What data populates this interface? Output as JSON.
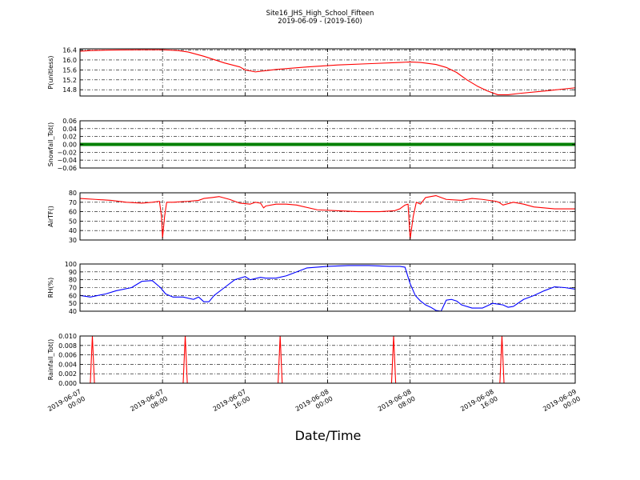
{
  "chart_data": [
    {
      "type": "line",
      "title": "Site16_JHS_High_School_Fifteen",
      "subtitle": "2019-06-09 - (2019-160)",
      "xlabel": "Date/Time",
      "xlim": [
        0,
        48
      ],
      "x_ticks": [
        {
          "value": 0,
          "line1": "2019-06-07",
          "line2": "00:00"
        },
        {
          "value": 8,
          "line1": "2019-06-07",
          "line2": "08:00"
        },
        {
          "value": 16,
          "line1": "2019-06-07",
          "line2": "16:00"
        },
        {
          "value": 24,
          "line1": "2019-06-08",
          "line2": "00:00"
        },
        {
          "value": 32,
          "line1": "2019-06-08",
          "line2": "08:00"
        },
        {
          "value": 40,
          "line1": "2019-06-08",
          "line2": "16:00"
        },
        {
          "value": 48,
          "line1": "2019-06-09",
          "line2": "00:00"
        }
      ],
      "x_unit": "hours since 2019-06-07 00:00",
      "grid": true,
      "panels": [
        {
          "ylabel": "P(unitless)",
          "ylim": [
            14.55,
            16.45
          ],
          "yticks": [
            "14.8",
            "15.2",
            "15.6",
            "16.0",
            "16.4"
          ],
          "ytick_values": [
            14.8,
            15.2,
            15.6,
            16.0,
            16.4
          ],
          "color": "#ff0000",
          "series": [
            {
              "x": [
                0,
                1,
                3,
                6,
                8,
                9.5,
                10.5,
                12,
                14,
                15.5,
                16,
                17,
                19,
                22,
                25,
                28,
                31,
                32,
                33,
                34.5,
                35.5,
                36.5,
                37.5,
                38.5,
                39.5,
                40.5,
                41.5,
                42.5,
                45,
                48
              ],
              "y": [
                16.35,
                16.38,
                16.4,
                16.41,
                16.41,
                16.38,
                16.32,
                16.15,
                15.88,
                15.72,
                15.6,
                15.52,
                15.62,
                15.72,
                15.8,
                15.85,
                15.9,
                15.92,
                15.9,
                15.82,
                15.7,
                15.5,
                15.2,
                14.95,
                14.75,
                14.6,
                14.6,
                14.65,
                14.75,
                14.88
              ]
            }
          ]
        },
        {
          "ylabel": "Snowfall_Tot()",
          "ylim": [
            -0.06,
            0.06
          ],
          "yticks": [
            "−0.06",
            "−0.04",
            "−0.02",
            "0.00",
            "0.02",
            "0.04",
            "0.06"
          ],
          "ytick_values": [
            -0.06,
            -0.04,
            -0.02,
            0,
            0.02,
            0.04,
            0.06
          ],
          "color": "#008000",
          "series": [
            {
              "x": [
                0,
                48
              ],
              "y": [
                0,
                0
              ]
            }
          ]
        },
        {
          "ylabel": "AirTF()",
          "ylim": [
            30,
            80
          ],
          "yticks": [
            "30",
            "40",
            "50",
            "60",
            "70",
            "80"
          ],
          "ytick_values": [
            30,
            40,
            50,
            60,
            70,
            80
          ],
          "color": "#ff0000",
          "series": [
            {
              "x": [
                0,
                1.5,
                3,
                4.5,
                6,
                7,
                7.7,
                7.9,
                8.0,
                8.2,
                8.4,
                9,
                10.5,
                11.5,
                12,
                12.8,
                13.5,
                14.5,
                15.5,
                16.5,
                17,
                17.5,
                17.8,
                18,
                19,
                20,
                21,
                23,
                25,
                27,
                29,
                30.5,
                31,
                31.5,
                31.8,
                32.0,
                32.3,
                32.6,
                33,
                33.5,
                34,
                34.5,
                35.5,
                37,
                38,
                39,
                40.3,
                40.6,
                41,
                42,
                43,
                44,
                46,
                48
              ],
              "y": [
                74,
                73,
                72,
                70,
                69,
                70,
                71,
                55,
                32,
                55,
                70,
                70,
                71,
                72,
                74,
                75,
                76,
                73,
                69,
                68,
                70,
                69,
                64,
                66,
                68,
                68,
                67,
                62,
                61,
                60,
                60,
                61,
                63,
                67,
                68,
                31,
                55,
                70,
                68,
                75,
                76,
                77,
                73,
                72,
                74,
                73,
                71,
                70,
                67,
                70,
                68,
                65,
                63,
                63
              ]
            }
          ]
        },
        {
          "ylabel": "RH(%)",
          "ylim": [
            40,
            100
          ],
          "yticks": [
            "40",
            "50",
            "60",
            "70",
            "80",
            "90",
            "100"
          ],
          "ytick_values": [
            40,
            50,
            60,
            70,
            80,
            90,
            100
          ],
          "color": "#0000ff",
          "series": [
            {
              "x": [
                0,
                1,
                2.5,
                3.5,
                5,
                6,
                7,
                7.8,
                8.3,
                9,
                10,
                11,
                11.5,
                12,
                12.5,
                13,
                14,
                15,
                16,
                16.5,
                17.5,
                18,
                19,
                20,
                22,
                24,
                26,
                28,
                30,
                31,
                31.5,
                32,
                32.5,
                33,
                33.5,
                34,
                34.5,
                35,
                35.5,
                36,
                36.5,
                37,
                38,
                39,
                40,
                41,
                41.5,
                42,
                43,
                44,
                45,
                46,
                47,
                48
              ],
              "y": [
                60,
                58,
                62,
                66,
                70,
                78,
                79,
                70,
                62,
                58,
                58,
                55,
                58,
                52,
                52,
                60,
                70,
                80,
                84,
                80,
                83,
                82,
                82,
                85,
                95,
                97,
                98,
                98,
                97,
                97,
                96,
                75,
                60,
                53,
                48,
                45,
                41,
                40,
                54,
                55,
                53,
                48,
                44,
                44,
                50,
                48,
                45,
                46,
                55,
                60,
                66,
                71,
                70,
                68
              ]
            }
          ]
        },
        {
          "ylabel": "Rainfall_Tot()",
          "ylim": [
            0,
            0.01
          ],
          "yticks": [
            "0.000",
            "0.002",
            "0.004",
            "0.006",
            "0.008",
            "0.010"
          ],
          "ytick_values": [
            0,
            0.002,
            0.004,
            0.006,
            0.008,
            0.01
          ],
          "color": "#ff0000",
          "series": [
            {
              "x": [
                0,
                1.0,
                1.2,
                1.4,
                10.0,
                10.2,
                10.4,
                19.2,
                19.4,
                19.6,
                30.2,
                30.4,
                30.6,
                40.7,
                40.9,
                41.1,
                48
              ],
              "y": [
                0,
                0,
                0.01,
                0,
                0,
                0.01,
                0,
                0,
                0.01,
                0,
                0,
                0.01,
                0,
                0,
                0.01,
                0,
                0
              ]
            }
          ]
        }
      ]
    }
  ]
}
